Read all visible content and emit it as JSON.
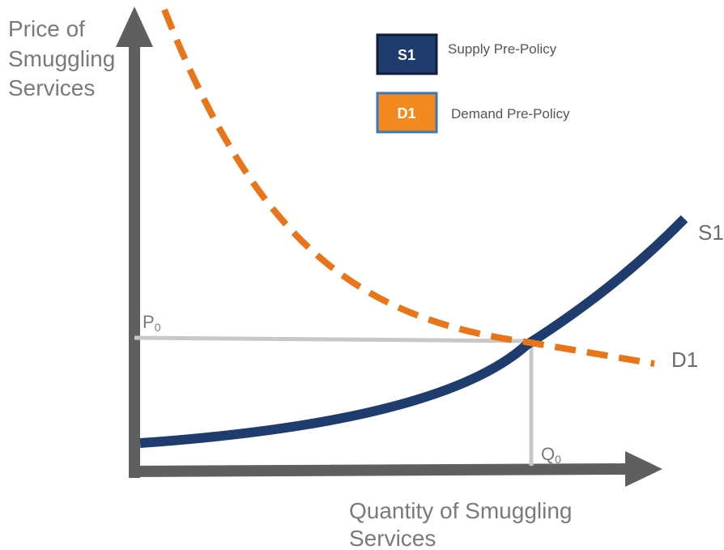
{
  "axes": {
    "y_label_lines": [
      "Price of",
      "Smuggling",
      "Services"
    ],
    "x_label_lines": [
      "Quantity of Smuggling",
      "Services"
    ]
  },
  "curves": {
    "supply": {
      "label": "S1",
      "color": "#1f3c6e"
    },
    "demand": {
      "label": "D1",
      "color": "#e8751a"
    }
  },
  "equilibrium": {
    "price_label": "P",
    "price_subscript": "0",
    "quantity_label": "Q",
    "quantity_subscript": "0"
  },
  "legend": {
    "items": [
      {
        "key": "S1",
        "text": "Supply Pre-Policy",
        "fill": "#1f3c6e",
        "border": "#111e38"
      },
      {
        "key": "D1",
        "text": "Demand Pre-Policy",
        "fill": "#f28a1f",
        "border": "#3b78b8"
      }
    ]
  },
  "colors": {
    "axis": "#5f5f5f",
    "guide_lines": "#c8c8c8"
  }
}
